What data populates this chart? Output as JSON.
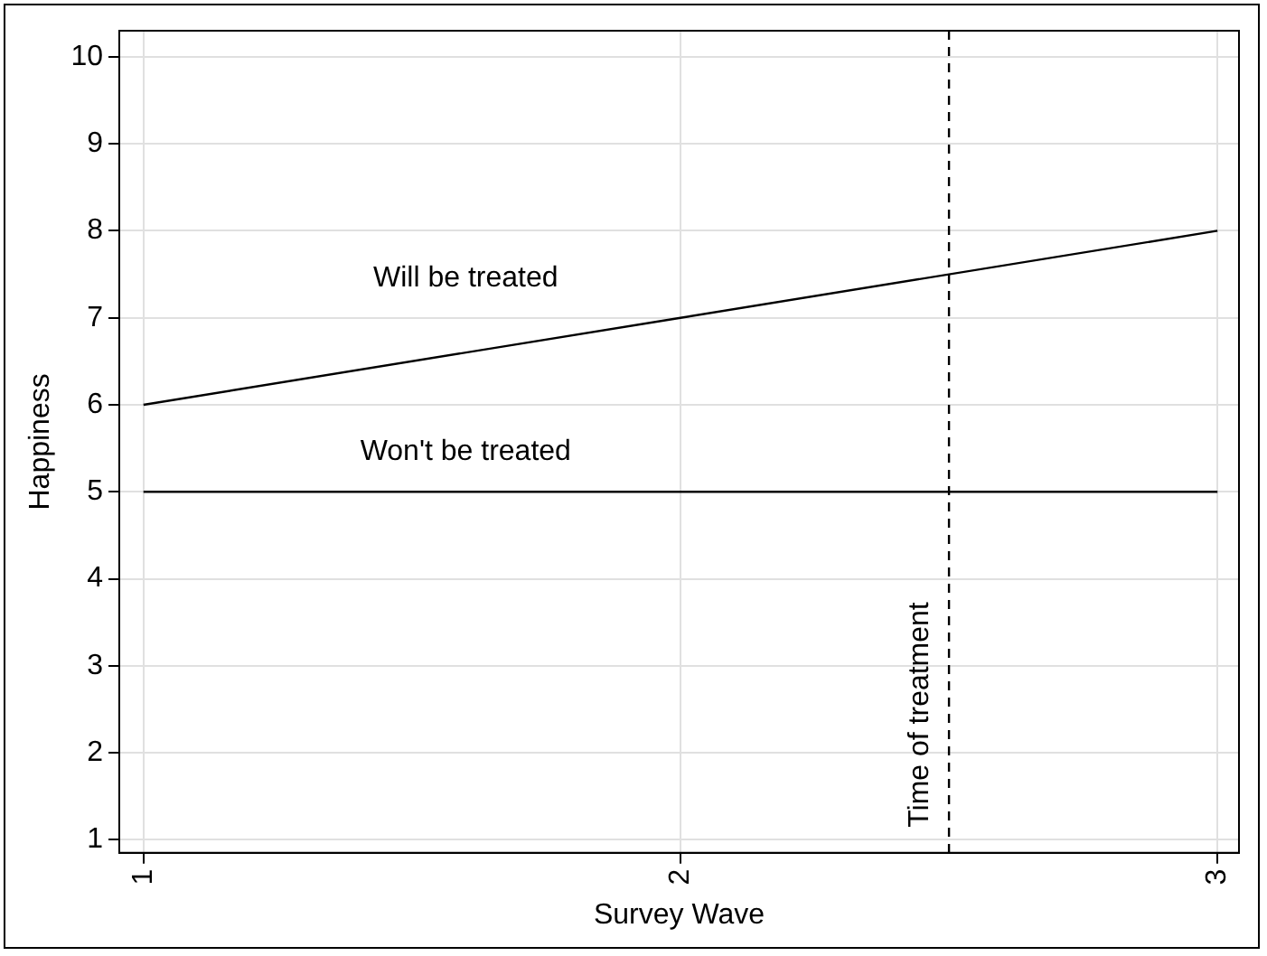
{
  "chart_data": {
    "type": "line",
    "xlabel": "Survey Wave",
    "ylabel": "Happiness",
    "xlim": [
      0.955,
      3.04
    ],
    "xticks": [
      1,
      2,
      3
    ],
    "ylim": [
      0.85,
      10.3
    ],
    "yticks": [
      1,
      2,
      3,
      4,
      5,
      6,
      7,
      8,
      9,
      10
    ],
    "series": [
      {
        "name": "Will be treated",
        "color": "#000000",
        "x": [
          1,
          2,
          3
        ],
        "values": [
          6,
          7,
          8
        ]
      },
      {
        "name": "Won't be treated",
        "color": "#000000",
        "x": [
          1,
          2,
          3
        ],
        "values": [
          5,
          5,
          5
        ]
      }
    ],
    "ref_lines": [
      {
        "axis": "x",
        "value": 2.5,
        "label": "Time of treatment",
        "line_style": "dashed",
        "color": "#000000"
      }
    ],
    "grid": true,
    "legend": false,
    "marker": "none",
    "line_style": "solid"
  }
}
